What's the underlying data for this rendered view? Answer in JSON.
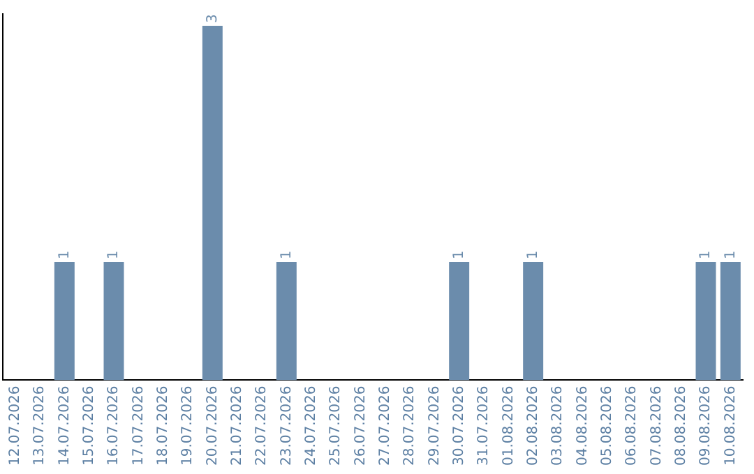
{
  "chart_data": {
    "type": "bar",
    "categories": [
      "12.07.2026",
      "13.07.2026",
      "14.07.2026",
      "15.07.2026",
      "16.07.2026",
      "17.07.2026",
      "18.07.2026",
      "19.07.2026",
      "20.07.2026",
      "21.07.2026",
      "22.07.2026",
      "23.07.2026",
      "24.07.2026",
      "25.07.2026",
      "26.07.2026",
      "27.07.2026",
      "28.07.2026",
      "29.07.2026",
      "30.07.2026",
      "31.07.2026",
      "01.08.2026",
      "02.08.2026",
      "03.08.2026",
      "04.08.2026",
      "05.08.2026",
      "06.08.2026",
      "07.08.2026",
      "08.08.2026",
      "09.08.2026",
      "10.08.2026"
    ],
    "values": [
      0,
      0,
      1,
      0,
      1,
      0,
      0,
      0,
      3,
      0,
      0,
      1,
      0,
      0,
      0,
      0,
      0,
      0,
      1,
      0,
      0,
      1,
      0,
      0,
      0,
      0,
      0,
      0,
      1,
      1
    ],
    "color": "#6b8cac",
    "ylim": [
      0,
      3.1
    ],
    "tick_labels": "x",
    "value_labels": [
      null,
      null,
      "1",
      null,
      "1",
      null,
      null,
      null,
      "3",
      null,
      null,
      "1",
      null,
      null,
      null,
      null,
      null,
      null,
      "1",
      null,
      null,
      "1",
      null,
      null,
      null,
      null,
      null,
      null,
      "1",
      "1"
    ],
    "grid": false,
    "legend": false
  }
}
